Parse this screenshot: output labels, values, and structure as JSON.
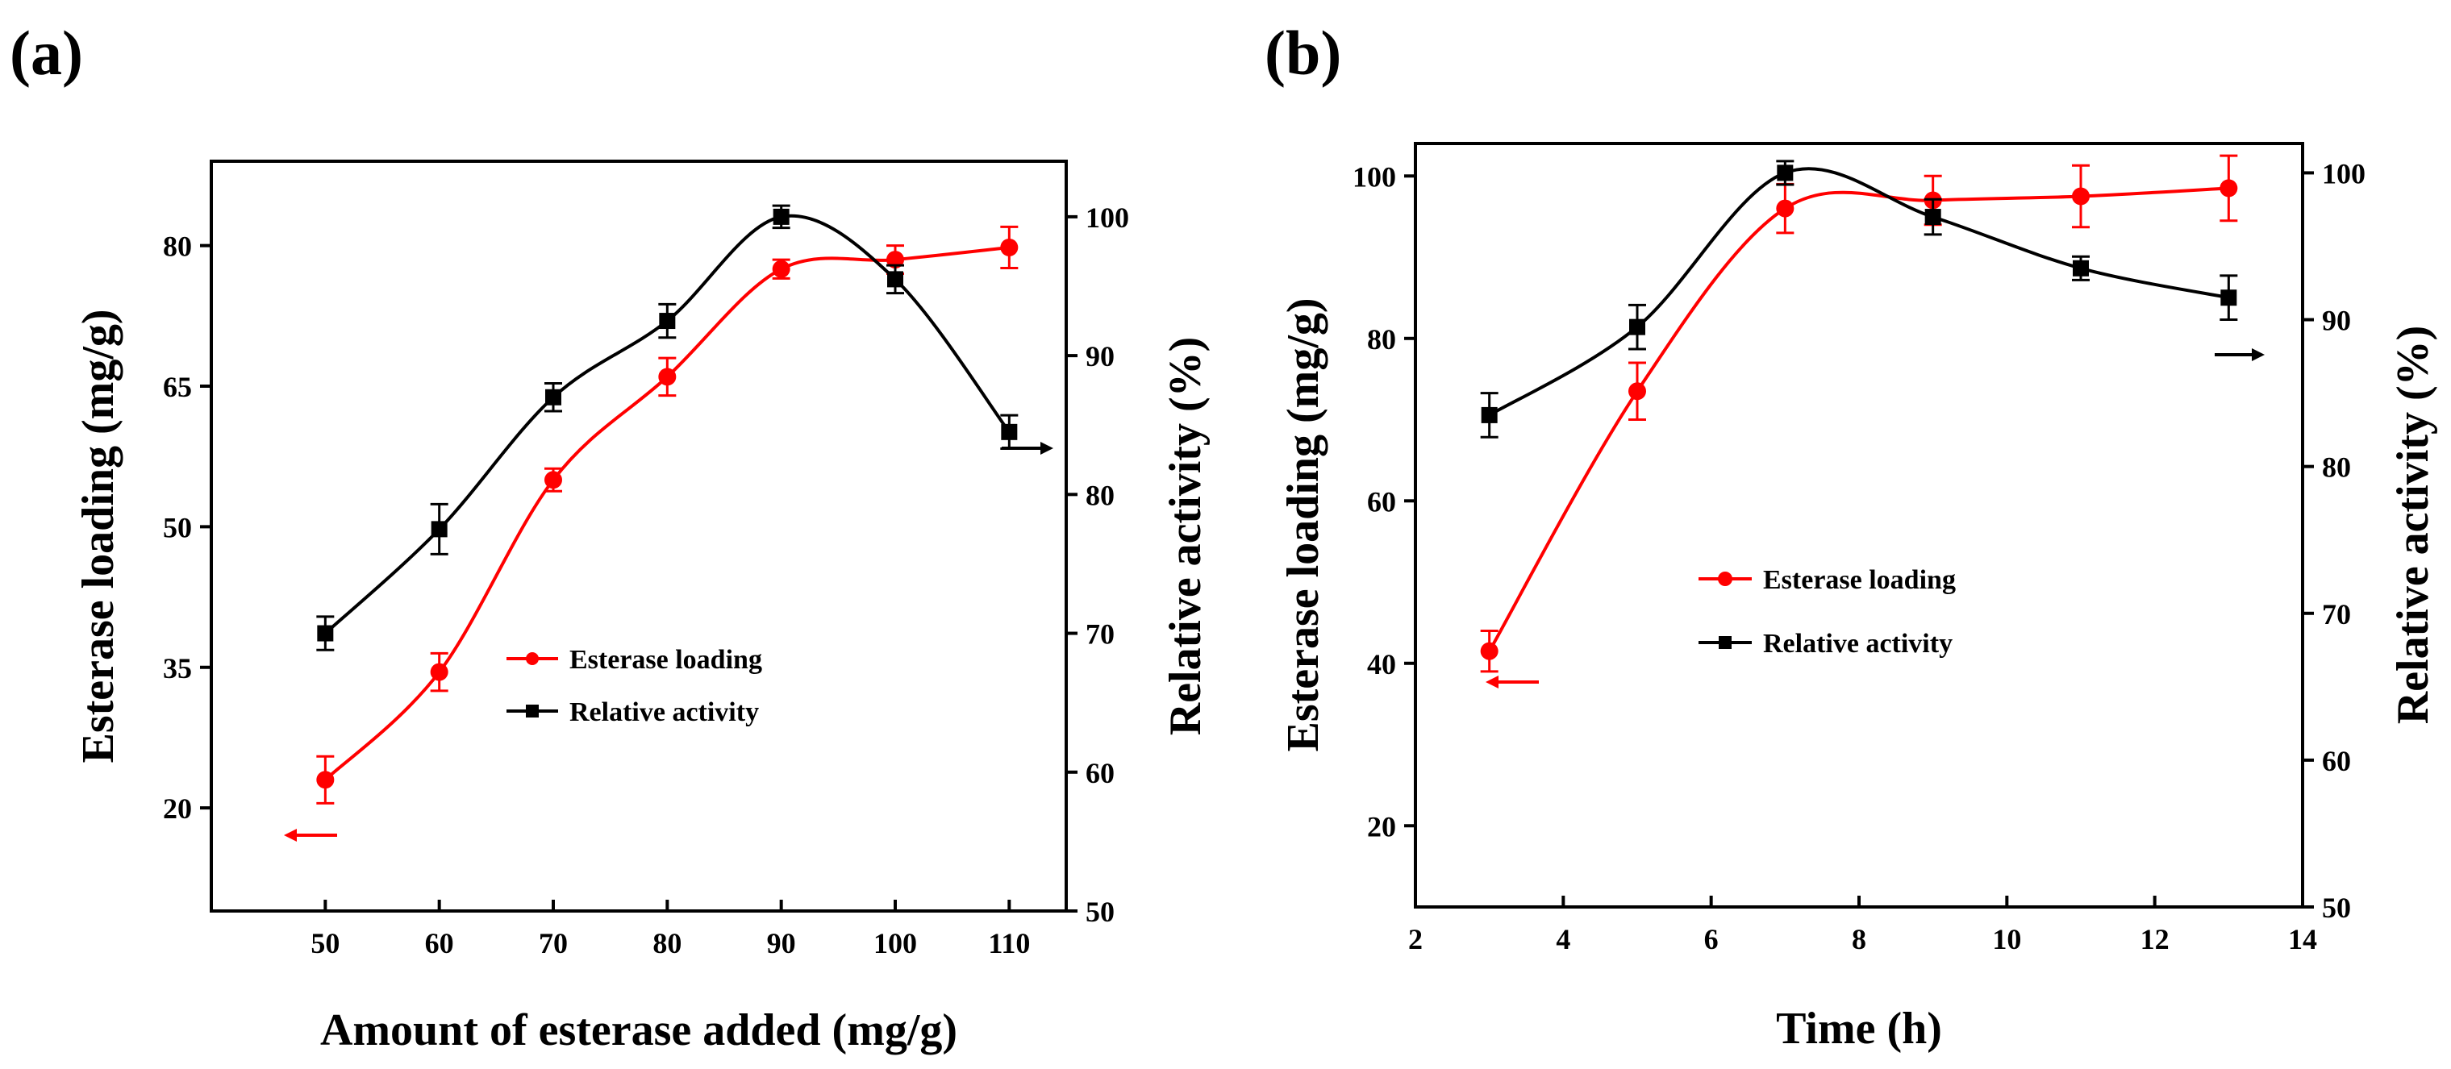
{
  "chart_data": [
    {
      "panel_label": "(a)",
      "type": "line",
      "xlabel": "Amount of esterase added (mg/g)",
      "ylabel_left": "Esterase loading (mg/g)",
      "ylabel_right": "Relative activity (%)",
      "xlim": [
        40,
        115
      ],
      "ylim_left": [
        9,
        89
      ],
      "ylim_right": [
        50,
        104
      ],
      "x_ticks": [
        50,
        60,
        70,
        80,
        90,
        100,
        110
      ],
      "y_left_ticks": [
        20,
        35,
        50,
        65,
        80
      ],
      "y_right_ticks": [
        50,
        60,
        70,
        80,
        90,
        100
      ],
      "x": [
        50,
        60,
        70,
        80,
        90,
        100,
        110
      ],
      "series": [
        {
          "name": "Esterase loading",
          "axis": "left",
          "color": "#ff0000",
          "marker": "circle",
          "values": [
            23.0,
            34.5,
            55.0,
            66.0,
            77.5,
            78.5,
            79.8
          ],
          "errors": [
            2.5,
            2.0,
            1.2,
            2.0,
            1.0,
            1.5,
            2.2
          ]
        },
        {
          "name": "Relative activity",
          "axis": "right",
          "color": "#000000",
          "marker": "square",
          "values": [
            70.0,
            77.5,
            87.0,
            92.5,
            100.0,
            95.5,
            84.5
          ],
          "errors": [
            1.2,
            1.8,
            1.0,
            1.2,
            0.8,
            1.0,
            1.2
          ]
        }
      ],
      "legend_position": "center"
    },
    {
      "panel_label": "(b)",
      "type": "line",
      "xlabel": "Time (h)",
      "ylabel_left": "Esterase loading (mg/g)",
      "ylabel_right": "Relative activity (%)",
      "xlim": [
        2,
        14
      ],
      "ylim_left": [
        10,
        104
      ],
      "ylim_right": [
        50,
        102
      ],
      "x_ticks": [
        2,
        4,
        6,
        8,
        10,
        12,
        14
      ],
      "y_left_ticks": [
        20,
        40,
        60,
        80,
        100
      ],
      "y_right_ticks": [
        50,
        60,
        70,
        80,
        90,
        100
      ],
      "x": [
        3,
        5,
        7,
        9,
        11,
        13
      ],
      "series": [
        {
          "name": "Esterase loading",
          "axis": "left",
          "color": "#ff0000",
          "marker": "circle",
          "values": [
            41.5,
            73.5,
            96.0,
            97.0,
            97.5,
            98.5
          ],
          "errors": [
            2.5,
            3.5,
            3.0,
            3.0,
            3.8,
            4.0
          ]
        },
        {
          "name": "Relative activity",
          "axis": "right",
          "color": "#000000",
          "marker": "square",
          "values": [
            83.5,
            89.5,
            100.0,
            97.0,
            93.5,
            91.5
          ],
          "errors": [
            1.5,
            1.5,
            0.8,
            1.2,
            0.8,
            1.5
          ]
        }
      ],
      "legend_position": "center"
    }
  ]
}
